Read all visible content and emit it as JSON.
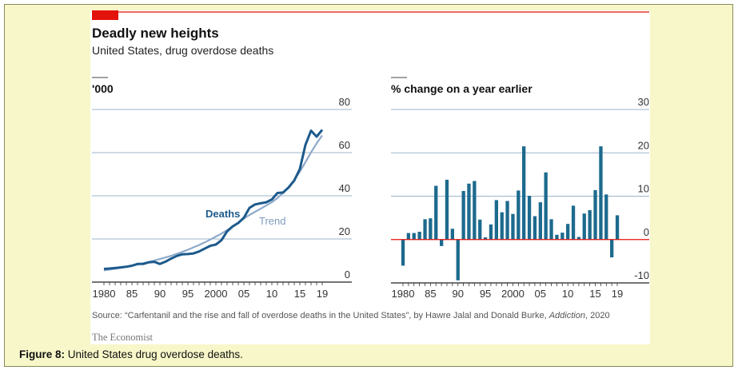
{
  "caption": {
    "label": "Figure 8:",
    "text": " United States drug overdose deaths."
  },
  "figure": {
    "title": "Deadly new heights",
    "subtitle": "United States, drug overdose deaths",
    "source_prefix": "Source: “Carfentanil and the rise and fall of overdose deaths in the United States”, by Hawre Jalal and Donald Burke, ",
    "source_journal": "Addiction",
    "source_suffix": ", 2020",
    "brand": "The Economist"
  },
  "colors": {
    "accent": "#e3120b",
    "deaths": "#1d5a8c",
    "trend": "#8ea9c9",
    "bars": "#1d6a8e",
    "grid": "#9db5c9",
    "frame_bg": "#f7f7c9"
  },
  "chart_data": [
    {
      "type": "line",
      "ylabel": "'000",
      "ylim": [
        0,
        80
      ],
      "yticks": [
        "0",
        "20",
        "40",
        "60",
        "80"
      ],
      "xtick_labels": [
        "1980",
        "85",
        "90",
        "95",
        "2000",
        "05",
        "10",
        "15",
        "19"
      ],
      "xticks": [
        1980,
        1985,
        1990,
        1995,
        2000,
        2005,
        2010,
        2015,
        2019
      ],
      "x": [
        1980,
        1981,
        1982,
        1983,
        1984,
        1985,
        1986,
        1987,
        1988,
        1989,
        1990,
        1991,
        1992,
        1993,
        1994,
        1995,
        1996,
        1997,
        1998,
        1999,
        2000,
        2001,
        2002,
        2003,
        2004,
        2005,
        2006,
        2007,
        2008,
        2009,
        2010,
        2011,
        2012,
        2013,
        2014,
        2015,
        2016,
        2017,
        2018,
        2019
      ],
      "series": [
        {
          "name": "Deaths",
          "values": [
            6.1,
            6.3,
            6.5,
            6.8,
            7.1,
            7.6,
            8.4,
            8.4,
            9.2,
            9.4,
            8.4,
            9.5,
            10.9,
            12.1,
            12.9,
            13.0,
            13.3,
            14.2,
            15.5,
            16.8,
            17.4,
            19.4,
            23.5,
            25.8,
            27.4,
            29.8,
            34.4,
            36.0,
            36.5,
            37.0,
            38.3,
            41.3,
            41.5,
            43.9,
            47.1,
            52.4,
            63.6,
            70.2,
            67.4,
            70.6
          ]
        },
        {
          "name": "Trend",
          "values": [
            5.4,
            5.8,
            6.2,
            6.6,
            7.1,
            7.6,
            8.1,
            8.7,
            9.3,
            10.0,
            10.7,
            11.4,
            12.2,
            13.1,
            14.0,
            15.0,
            16.1,
            17.2,
            18.4,
            19.7,
            21.1,
            22.5,
            24.1,
            25.8,
            27.6,
            29.5,
            31.1,
            32.6,
            34.0,
            35.5,
            37.0,
            39.0,
            41.3,
            44.0,
            47.3,
            51.2,
            55.6,
            60.1,
            64.3,
            68.0
          ]
        }
      ],
      "annotations": [
        "Deaths",
        "Trend"
      ]
    },
    {
      "type": "bar",
      "ylabel": "% change on a year earlier",
      "ylim": [
        -10,
        30
      ],
      "yticks": [
        "-10",
        "0",
        "10",
        "20",
        "30"
      ],
      "xtick_labels": [
        "1980",
        "85",
        "90",
        "95",
        "2000",
        "05",
        "10",
        "15",
        "19"
      ],
      "xticks": [
        1980,
        1985,
        1990,
        1995,
        2000,
        2005,
        2010,
        2015,
        2019
      ],
      "categories": [
        1980,
        1981,
        1982,
        1983,
        1984,
        1985,
        1986,
        1987,
        1988,
        1989,
        1990,
        1991,
        1992,
        1993,
        1994,
        1995,
        1996,
        1997,
        1998,
        1999,
        2000,
        2001,
        2002,
        2003,
        2004,
        2005,
        2006,
        2007,
        2008,
        2009,
        2010,
        2011,
        2012,
        2013,
        2014,
        2015,
        2016,
        2017,
        2018,
        2019
      ],
      "values": [
        -6,
        1.5,
        1.5,
        1.8,
        4.7,
        4.9,
        12.4,
        -1.5,
        13.8,
        2.5,
        -9.4,
        11.2,
        12.9,
        13.5,
        4.6,
        0.5,
        3.5,
        9.1,
        6.3,
        8.9,
        5.9,
        11.3,
        21.5,
        10.1,
        5.4,
        8.6,
        15.5,
        4.7,
        1.1,
        1.6,
        3.6,
        7.8,
        0.6,
        6.0,
        6.8,
        11.4,
        21.5,
        10.4,
        -4.1,
        5.6
      ]
    }
  ]
}
